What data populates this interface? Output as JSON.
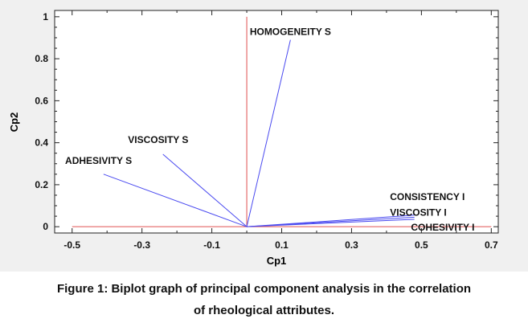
{
  "colors": {
    "panel_bg": "#f0f0f0",
    "plot_bg": "#ffffff",
    "vector": "#4a4af0",
    "axis_line": "#e05050",
    "text": "#111111"
  },
  "chart_data": {
    "type": "biplot",
    "xlabel": "Cp1",
    "ylabel": "Cp2",
    "xlim": [
      -0.55,
      0.72
    ],
    "ylim": [
      -0.03,
      1.03
    ],
    "xticks": [
      "-0.5",
      "-0.3",
      "-0.1",
      "0.1",
      "0.3",
      "0.5",
      "0.7"
    ],
    "yticks": [
      "0",
      "0.2",
      "0.4",
      "0.6",
      "0.8",
      "1"
    ],
    "grid": false,
    "vectors": [
      {
        "name": "HOMOGENEITY S",
        "x": 0.125,
        "y": 0.89
      },
      {
        "name": "VISCOSITY S",
        "x": -0.24,
        "y": 0.345
      },
      {
        "name": "ADHESIVITY S",
        "x": -0.41,
        "y": 0.25
      },
      {
        "name": "CONSISTENCY I",
        "x": 0.48,
        "y": 0.055
      },
      {
        "name": "VISCOSITY I",
        "x": 0.48,
        "y": 0.045
      },
      {
        "name": "COHESIVITY I",
        "x": 0.48,
        "y": 0.035
      }
    ]
  },
  "caption": {
    "line1": "Figure 1: Biplot graph of principal component analysis in the correlation",
    "line2": "of rheological attributes."
  }
}
